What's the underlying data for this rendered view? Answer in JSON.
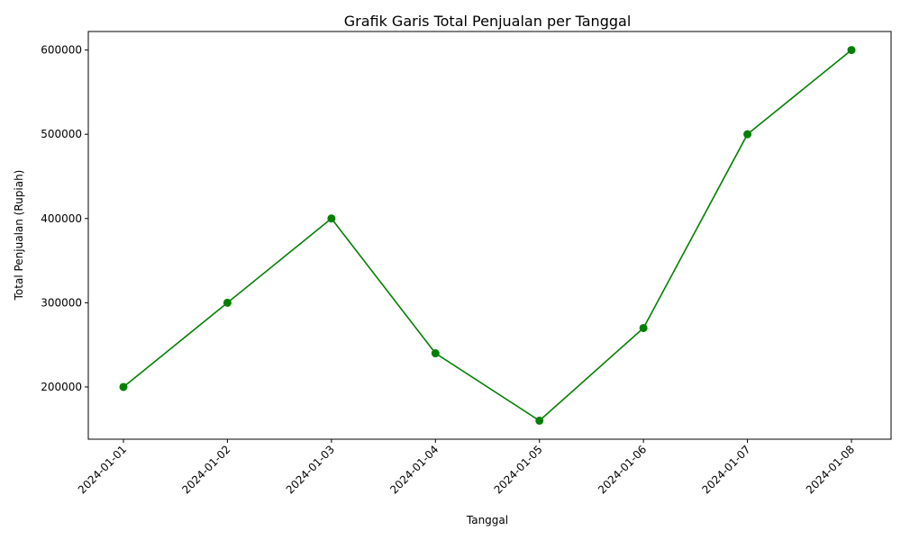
{
  "chart_data": {
    "type": "line",
    "title": "Grafik Garis Total Penjualan per Tanggal",
    "xlabel": "Tanggal",
    "ylabel": "Total Penjualan (Rupiah)",
    "categories": [
      "2024-01-01",
      "2024-01-02",
      "2024-01-03",
      "2024-01-04",
      "2024-01-05",
      "2024-01-06",
      "2024-01-07",
      "2024-01-08"
    ],
    "series": [
      {
        "values": [
          200000,
          300000,
          400000,
          240000,
          160000,
          270000,
          500000,
          600000
        ],
        "color": "#008000",
        "marker": "circle"
      }
    ],
    "ylim": [
      138000,
      622000
    ],
    "yticks": [
      200000,
      300000,
      400000,
      500000,
      600000
    ],
    "ytick_labels": [
      "200000",
      "300000",
      "400000",
      "500000",
      "600000"
    ],
    "xtick_rotation": 45,
    "grid": false,
    "legend": "none"
  }
}
